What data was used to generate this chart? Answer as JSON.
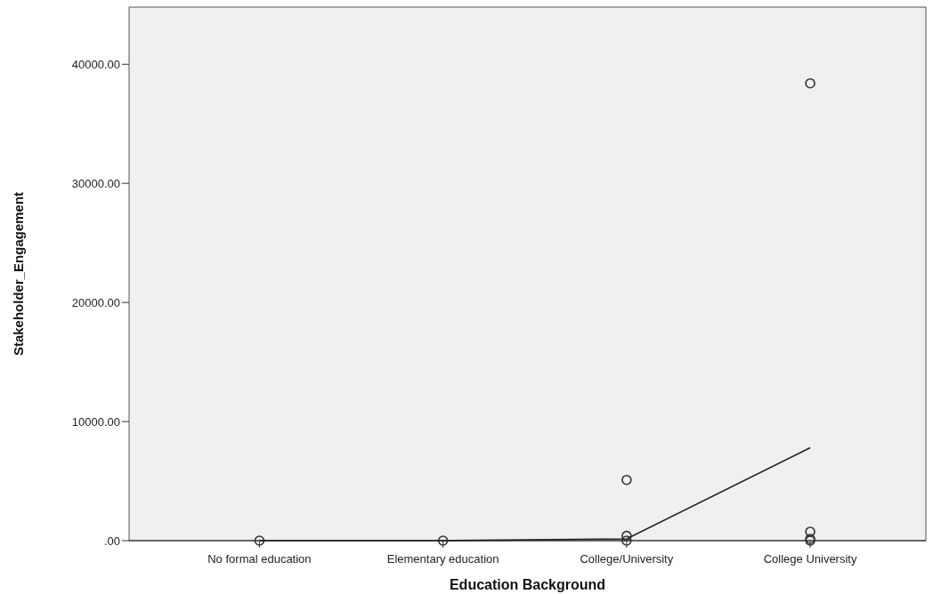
{
  "chart_data": {
    "type": "scatter",
    "xlabel": "Education Background",
    "ylabel": "Stakeholder_Engagement",
    "categories": [
      "No formal education",
      "Elementary education",
      "College/University",
      "College University"
    ],
    "ylim": [
      0,
      44800
    ],
    "yticks": [
      {
        "value": 0,
        "label": ".00"
      },
      {
        "value": 10000,
        "label": "10000.00"
      },
      {
        "value": 20000,
        "label": "20000.00"
      },
      {
        "value": 30000,
        "label": "30000.00"
      },
      {
        "value": 40000,
        "label": "40000.00"
      }
    ],
    "grid": false,
    "series": [
      {
        "marker": "circle",
        "color": "#333333",
        "x": [
          "No formal education",
          "Elementary education",
          "College/University",
          "College/University",
          "College/University",
          "College University",
          "College University",
          "College University",
          "College University"
        ],
        "values": [
          0,
          0,
          0,
          400,
          5100,
          0,
          150,
          750,
          38400
        ]
      },
      {
        "type": "line",
        "line_style": "solid",
        "color": "#222222",
        "values": [
          0,
          0,
          150,
          7800
        ]
      }
    ]
  }
}
